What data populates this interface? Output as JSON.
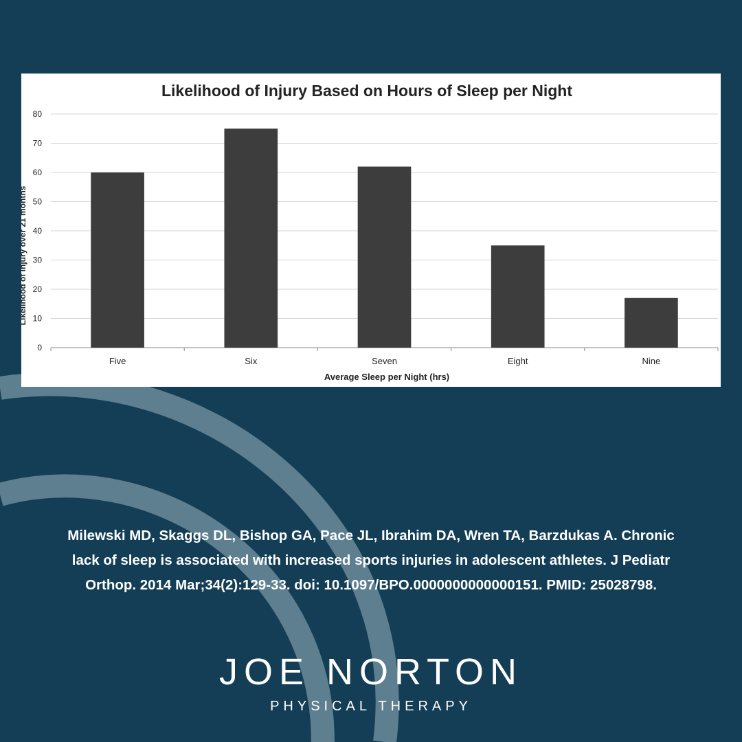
{
  "colors": {
    "background": "#133e55",
    "swirl": "#5e7f90",
    "bar": "#3d3d3d",
    "text": "#ffffff"
  },
  "chart_data": {
    "type": "bar",
    "title": "Likelihood of Injury Based on Hours of Sleep per Night",
    "xlabel": "Average Sleep per Night (hrs)",
    "ylabel": "Likelihood of injury over 21 months",
    "categories": [
      "Five",
      "Six",
      "Seven",
      "Eight",
      "Nine"
    ],
    "values": [
      60,
      75,
      62,
      35,
      17
    ],
    "ylim": [
      0,
      80
    ],
    "yticks": [
      0,
      10,
      20,
      30,
      40,
      50,
      60,
      70,
      80
    ],
    "grid": true,
    "legend": "none"
  },
  "citation": {
    "lines": [
      "Milewski MD, Skaggs DL, Bishop GA, Pace JL, Ibrahim DA, Wren TA, Barzdukas A. Chronic",
      "lack of sleep is associated with increased sports injuries in adolescent athletes. J Pediatr",
      "Orthop. 2014 Mar;34(2):129-33. doi: 10.1097/BPO.0000000000000151. PMID: 25028798."
    ]
  },
  "brand": {
    "name": "JOE NORTON",
    "tagline": "PHYSICAL THERAPY",
    "logo_icon": "swirl-o-icon"
  }
}
